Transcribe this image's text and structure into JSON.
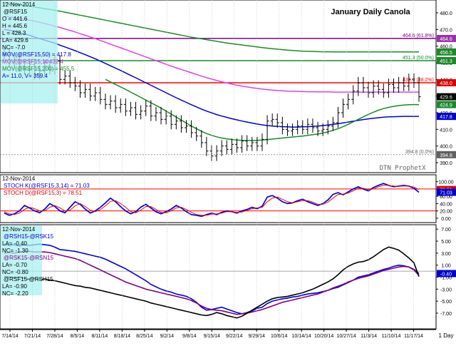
{
  "colors": {
    "price": "#000000",
    "ma50": "#0000dd",
    "ma100": "#e040e0",
    "ma200": "#1a8a2a",
    "fib_red": "#ff0000",
    "fib_purple": "#800080",
    "fib_green": "#1a8a2a",
    "stoch_k": "#0000dd",
    "stoch_d": "#ff0000",
    "spread1": "#0000dd",
    "spread2": "#800080",
    "spread3": "#000000",
    "tag_blue": "#0000cc",
    "tag_red": "#dd0000",
    "tag_purple": "#9933aa",
    "tag_green": "#1a8a2a",
    "tag_grey": "#606060",
    "tag_black": "#000000"
  },
  "chart_data": [
    {
      "type": "line",
      "title": "January Daily Canola",
      "watermark": "DTN ProphetX",
      "info": {
        "date": "12-Nov-2014",
        "symbol": "@RSF15",
        "o": "O = 441.6",
        "h": "H = 445.6",
        "l": "L = 428.3",
        "la": "LA= 429.6",
        "nc": "NC= -7.0",
        "mov50": "MOV(@RSF15,50) = 417.8",
        "mov100_short": "MOV(@RSF15,10",
        "mov100_val": "= 432.4",
        "mov200": "MOV(@RSF15,200) = 455.5",
        "av": "A= 11.0, V= 359.4"
      },
      "ylim": [
        384,
        486
      ],
      "y_ticks": [
        390,
        400,
        410,
        420,
        430,
        440,
        450,
        460,
        470,
        480
      ],
      "y_tick_labels": [
        "390.0",
        "400.0",
        "410.0",
        "420.0",
        "430.0",
        "440.0",
        "450.0",
        "460.0",
        "470.0",
        "480.0"
      ],
      "fib_lines": [
        {
          "value": 464.6,
          "label": "464.6 (61.8%)",
          "color": "fib_purple"
        },
        {
          "value": 451.3,
          "label": "451.3 (50.0%)",
          "color": "fib_green"
        },
        {
          "value": 438.0,
          "label": "438.0 (38.2%)",
          "color": "fib_red"
        },
        {
          "value": 394.8,
          "label": "394.8 (0.0%)",
          "color": "tag_grey"
        }
      ],
      "axis_tags": [
        {
          "value": 464.6,
          "label": "464.6",
          "color": "tag_purple"
        },
        {
          "value": 456.5,
          "label": "456.5",
          "color": "tag_green"
        },
        {
          "value": 451.3,
          "label": "451.3",
          "color": "tag_green"
        },
        {
          "value": 438.0,
          "label": "438.0",
          "color": "tag_red"
        },
        {
          "value": 429.6,
          "label": "429.6",
          "color": "tag_black"
        },
        {
          "value": 424.9,
          "label": "424.9",
          "color": "tag_green"
        },
        {
          "value": 417.8,
          "label": "417.8",
          "color": "tag_blue"
        },
        {
          "value": 394.8,
          "label": "394.8",
          "color": "tag_grey"
        }
      ],
      "ohlc_close": [
        455,
        450,
        452,
        448,
        446,
        449,
        443,
        445,
        448,
        446,
        451,
        440,
        442,
        438,
        436,
        432,
        434,
        430,
        432,
        428,
        425,
        427,
        423,
        425,
        421,
        423,
        419,
        421,
        424,
        418,
        420,
        416,
        418,
        413,
        415,
        411,
        412,
        408,
        406,
        402,
        397,
        394,
        397,
        400,
        398,
        401,
        399,
        403,
        400,
        402,
        400,
        404,
        415,
        416,
        414,
        410,
        409,
        410,
        412,
        410,
        413,
        411,
        409,
        410,
        412,
        414,
        420,
        425,
        428,
        433,
        438,
        435,
        432,
        436,
        434,
        432,
        437,
        435,
        438,
        436,
        440,
        438,
        429.6
      ],
      "ma50": [
        470,
        469.5,
        469,
        468,
        467.3,
        466.5,
        465.5,
        464.5,
        463.6,
        462.7,
        461.8,
        460.6,
        459.5,
        458.4,
        457.3,
        456.1,
        454.9,
        453.6,
        452.4,
        451,
        449.6,
        448.2,
        446.8,
        445.4,
        443.9,
        442.4,
        441,
        439.5,
        438,
        436.5,
        435,
        433.5,
        432,
        430.5,
        429,
        427.6,
        426.2,
        424.8,
        423.5,
        422.2,
        421,
        419.9,
        418.9,
        418,
        417.2,
        416.4,
        415.7,
        415,
        414.4,
        413.8,
        413.2,
        412.7,
        412.3,
        412,
        411.8,
        411.6,
        411.5,
        411.4,
        411.4,
        411.5,
        411.6,
        411.8,
        412,
        412.3,
        412.6,
        413,
        413.4,
        413.9,
        414.4,
        414.9,
        415.4,
        415.9,
        416.3,
        416.7,
        417,
        417.3,
        417.5,
        417.6,
        417.7,
        417.8,
        417.8,
        417.8,
        417.8
      ],
      "ma100": [
        478,
        477.6,
        477.2,
        476.7,
        476.2,
        475.6,
        475,
        474.3,
        473.6,
        472.8,
        472,
        471.2,
        470.3,
        469.4,
        468.5,
        467.5,
        466.5,
        465.5,
        464.5,
        463.4,
        462.3,
        461.2,
        460.1,
        459,
        457.9,
        456.8,
        455.7,
        454.6,
        453.5,
        452.4,
        451.3,
        450.2,
        449.1,
        448,
        447,
        446,
        445,
        444,
        443,
        442,
        441.1,
        440.2,
        439.4,
        438.6,
        437.9,
        437.2,
        436.6,
        436,
        435.5,
        435,
        434.6,
        434.2,
        433.9,
        433.6,
        433.4,
        433.2,
        433,
        432.9,
        432.8,
        432.7,
        432.6,
        432.6,
        432.5,
        432.5,
        432.5,
        432.4,
        432.4,
        432.4,
        432.4,
        432.4,
        432.4,
        432.4,
        432.4,
        432.4,
        432.4,
        432.4,
        432.4,
        432.4,
        432.4,
        432.4,
        432.4,
        432.4,
        432.4
      ],
      "ma200": [
        486,
        485.6,
        485.2,
        484.8,
        484.4,
        484,
        483.5,
        483,
        482.5,
        482,
        481.5,
        481,
        480.4,
        479.8,
        479.2,
        478.6,
        478,
        477.4,
        476.8,
        476.2,
        475.6,
        475,
        474.4,
        473.8,
        473.2,
        472.6,
        472,
        471.4,
        470.8,
        470.2,
        469.6,
        469,
        468.4,
        467.8,
        467.2,
        466.6,
        466,
        465.4,
        464.9,
        464.4,
        463.9,
        463.4,
        462.9,
        462.4,
        461.9,
        461.5,
        461.1,
        460.7,
        460.3,
        459.9,
        459.5,
        459.1,
        458.8,
        458.5,
        458.2,
        457.9,
        457.6,
        457.4,
        457.2,
        457,
        456.9,
        456.8,
        456.7,
        456.6,
        456.6,
        456.5,
        456.5,
        456.5,
        456.5,
        456.5,
        456.5,
        456.5,
        456.5,
        456.5,
        456.5,
        456.5,
        456.5,
        456.5,
        456.5,
        456.5,
        456.5,
        456.5,
        456.5
      ],
      "ma_green_mid": [
        null,
        null,
        null,
        null,
        null,
        null,
        null,
        null,
        null,
        null,
        null,
        null,
        null,
        null,
        null,
        null,
        null,
        null,
        null,
        null,
        440,
        438.5,
        437,
        435.5,
        434,
        432.4,
        430.8,
        429.2,
        427.6,
        426,
        424.4,
        422.8,
        421,
        419.2,
        417.4,
        415.6,
        413.8,
        412,
        410.4,
        408.8,
        407.5,
        406.4,
        405.5,
        404.8,
        404.3,
        403.9,
        403.6,
        403.4,
        403.3,
        403.3,
        403.4,
        403.6,
        403.9,
        404.2,
        404.5,
        404.8,
        405.1,
        405.4,
        405.7,
        406,
        406.4,
        406.8,
        407.2,
        407.8,
        408.5,
        409.4,
        410.4,
        411.6,
        413,
        414.5,
        416,
        417.5,
        419,
        420.3,
        421.5,
        422.5,
        423.2,
        423.8,
        424.3,
        424.6,
        424.8,
        424.9,
        424.9
      ]
    },
    {
      "type": "line",
      "info": {
        "date": "12-Nov-2014",
        "stoch_k": "STOCH K(@RSF15,3,14) = 71.03",
        "stoch_d": "STOCH D(@RSF15,3) = 78.51"
      },
      "ylim": [
        -10,
        115
      ],
      "y_ticks": [
        0,
        20,
        40,
        60,
        80,
        100
      ],
      "y_tick_labels": [
        "0.00",
        "20.00",
        "40.00",
        "60.00",
        "80.00",
        "100.00"
      ],
      "ref_lines": [
        80,
        20
      ],
      "axis_tags": [
        {
          "value": 78.51,
          "label": "78.51",
          "color": "tag_red"
        },
        {
          "value": 71.03,
          "label": "71.03",
          "color": "tag_blue"
        }
      ],
      "series": [
        {
          "name": "STOCH K",
          "color": "stoch_k",
          "values": [
            14,
            8,
            12,
            20,
            35,
            28,
            20,
            15,
            25,
            40,
            32,
            20,
            15,
            30,
            45,
            38,
            25,
            14,
            20,
            30,
            42,
            55,
            45,
            32,
            20,
            12,
            18,
            30,
            38,
            28,
            18,
            12,
            18,
            25,
            35,
            28,
            18,
            10,
            8,
            5,
            10,
            14,
            10,
            16,
            20,
            18,
            14,
            20,
            24,
            30,
            26,
            33,
            58,
            62,
            55,
            45,
            40,
            42,
            48,
            52,
            45,
            40,
            35,
            40,
            50,
            65,
            70,
            64,
            72,
            80,
            86,
            80,
            75,
            84,
            90,
            95,
            90,
            86,
            88,
            90,
            88,
            82,
            71
          ]
        },
        {
          "name": "STOCH D",
          "color": "stoch_d",
          "values": [
            18,
            12,
            10,
            14,
            24,
            30,
            26,
            20,
            20,
            30,
            35,
            28,
            20,
            22,
            34,
            40,
            32,
            22,
            18,
            24,
            34,
            46,
            48,
            40,
            30,
            18,
            15,
            22,
            32,
            32,
            24,
            16,
            15,
            20,
            28,
            30,
            24,
            16,
            10,
            8,
            8,
            11,
            12,
            14,
            18,
            18,
            16,
            17,
            22,
            26,
            28,
            30,
            45,
            55,
            58,
            52,
            45,
            42,
            45,
            48,
            48,
            44,
            38,
            38,
            44,
            55,
            65,
            66,
            69,
            75,
            82,
            82,
            78,
            80,
            86,
            90,
            90,
            88,
            87,
            88,
            88,
            85,
            78.51
          ]
        }
      ]
    },
    {
      "type": "line",
      "info": {
        "date": "12-Nov-2014",
        "s1": "@RSH15-@RSK15",
        "s1_la": "LA= -0.40",
        "s1_nc": "NC= -1.30",
        "s2": "@RSK15-@RSN15",
        "s2_la": "LA= -0.70",
        "s2_nc": "NC= -0.80",
        "s3": "@RSF15-@RSH15",
        "s3_la": "LA= -0.90",
        "s3_nc": "NC= -2.20"
      },
      "ylim": [
        -9.5,
        7.5
      ],
      "y_ticks": [
        -7,
        -5,
        -3,
        -1,
        1,
        3,
        5,
        7
      ],
      "y_tick_labels": [
        "-7.00",
        "-5.00",
        "-3.00",
        "-1.00",
        "1.00",
        "3.00",
        "5.00",
        "7.00"
      ],
      "axis_tags": [
        {
          "value": -0.4,
          "label": "-0.40",
          "color": "tag_blue"
        }
      ],
      "series": [
        {
          "name": "@RSH15-@RSK15",
          "color": "spread1",
          "values": [
            4.5,
            4.3,
            4.4,
            4.2,
            4.4,
            4.3,
            4.4,
            4.5,
            4.4,
            4.3,
            4.0,
            3.6,
            3.5,
            3.4,
            3.3,
            3.1,
            2.9,
            2.7,
            2.5,
            2.3,
            2.0,
            1.6,
            1.2,
            0.8,
            0.4,
            -0.1,
            -0.6,
            -1.1,
            -1.6,
            -2.2,
            -2.6,
            -3.0,
            -3.3,
            -3.5,
            -3.8,
            -4.0,
            -4.2,
            -4.6,
            -5.2,
            -6.0,
            -6.5,
            -6.4,
            -6.2,
            -6.0,
            -6.3,
            -6.6,
            -6.9,
            -7.1,
            -6.9,
            -6.6,
            -6.2,
            -6.0,
            -5.4,
            -5.0,
            -4.8,
            -4.6,
            -4.5,
            -4.3,
            -4.2,
            -4.0,
            -3.8,
            -3.7,
            -3.6,
            -3.4,
            -3.2,
            -2.9,
            -2.7,
            -2.3,
            -1.9,
            -1.5,
            -1.0,
            -0.8,
            -0.6,
            -0.3,
            0.0,
            0.3,
            0.5,
            0.8,
            1.0,
            0.9,
            0.7,
            0.3,
            -0.4
          ]
        },
        {
          "name": "@RSK15-@RSN15",
          "color": "spread2",
          "values": [
            3.0,
            3.1,
            3.0,
            3.2,
            3.3,
            3.3,
            3.2,
            3.2,
            3.2,
            3.1,
            2.9,
            2.7,
            2.5,
            2.3,
            2.1,
            1.8,
            1.4,
            1.0,
            0.6,
            0.2,
            -0.2,
            -0.6,
            -1.0,
            -1.4,
            -1.8,
            -2.1,
            -2.4,
            -2.7,
            -3.0,
            -3.2,
            -3.4,
            -3.6,
            -3.8,
            -4.0,
            -4.2,
            -4.4,
            -4.6,
            -4.9,
            -5.3,
            -5.8,
            -6.2,
            -6.4,
            -6.5,
            -6.6,
            -6.8,
            -7.0,
            -7.2,
            -7.1,
            -7.0,
            -6.8,
            -6.6,
            -6.4,
            -6.1,
            -5.8,
            -5.5,
            -5.2,
            -5.0,
            -4.8,
            -4.6,
            -4.4,
            -4.2,
            -4.0,
            -3.8,
            -3.5,
            -3.2,
            -2.8,
            -2.5,
            -2.2,
            -1.8,
            -1.5,
            -1.2,
            -1.0,
            -0.8,
            -0.5,
            -0.2,
            0.1,
            0.3,
            0.5,
            0.7,
            0.8,
            0.7,
            0.2,
            -0.7
          ]
        },
        {
          "name": "@RSF15-@RSH15",
          "color": "spread3",
          "values": [
            -0.9,
            -1.0,
            -1.1,
            -1.0,
            -1.2,
            -1.3,
            -1.2,
            -1.4,
            -1.3,
            -1.5,
            -1.6,
            -1.8,
            -2.0,
            -2.2,
            -2.4,
            -2.5,
            -2.7,
            -2.8,
            -3.0,
            -3.2,
            -3.4,
            -3.6,
            -3.8,
            -4.0,
            -4.2,
            -4.4,
            -4.6,
            -4.8,
            -5.0,
            -5.3,
            -5.5,
            -5.7,
            -5.9,
            -6.1,
            -6.3,
            -6.5,
            -6.7,
            -6.9,
            -7.1,
            -7.3,
            -7.4,
            -7.2,
            -6.9,
            -7.1,
            -7.4,
            -7.6,
            -7.8,
            -7.5,
            -7.0,
            -6.5,
            -6.0,
            -5.5,
            -5.0,
            -4.6,
            -4.4,
            -4.3,
            -4.2,
            -4.0,
            -3.8,
            -3.6,
            -3.3,
            -3.0,
            -2.6,
            -2.2,
            -1.8,
            -1.3,
            -0.6,
            0.2,
            0.8,
            1.2,
            1.5,
            1.6,
            1.9,
            2.4,
            3.0,
            3.6,
            4.0,
            3.8,
            3.5,
            2.9,
            2.2,
            1.4,
            -0.9
          ]
        }
      ]
    }
  ],
  "x_axis": {
    "labels": [
      "7/14/14",
      "7/21/14",
      "7/28/14",
      "8/5/14",
      "8/11/14",
      "8/18/14",
      "8/25/14",
      "9/2/14",
      "9/8/14",
      "9/15/14",
      "9/22/14",
      "9/29/14",
      "10/6/14",
      "10/14/14",
      "10/20/14",
      "10/27/14",
      "11/3/14",
      "11/10/14",
      "11/17/14"
    ],
    "periodicity": "1 Day"
  }
}
